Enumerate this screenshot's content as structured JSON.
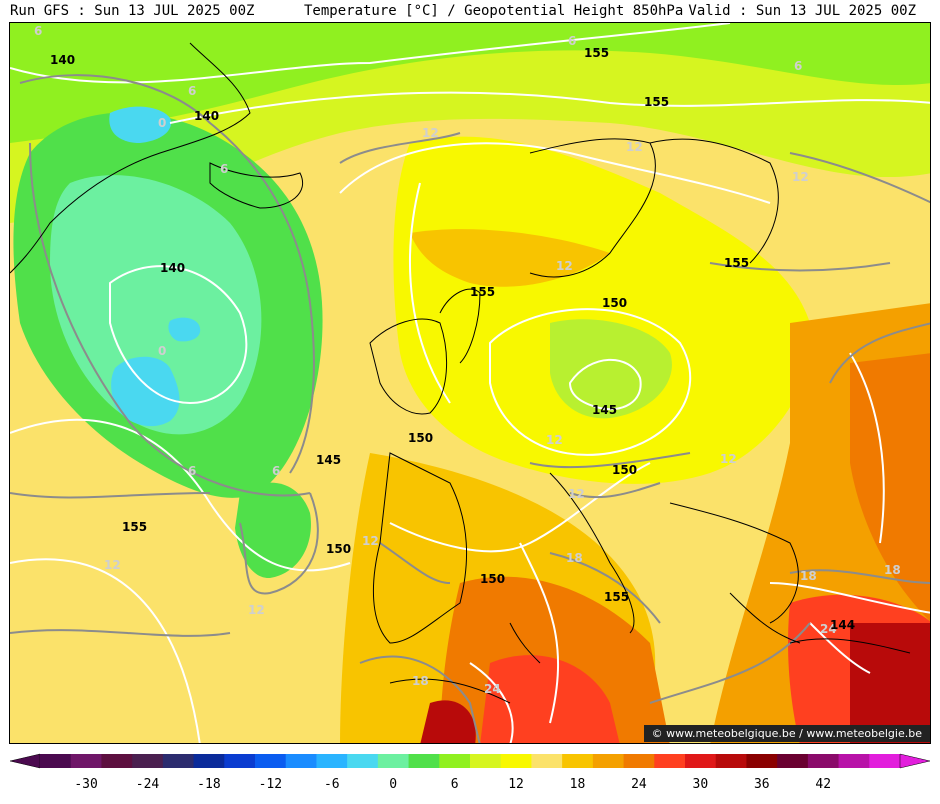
{
  "header": {
    "run": "Run GFS : Sun 13 JUL 2025 00Z",
    "title": "Temperature [°C] / Geopotential Height 850hPa",
    "valid": "Valid : Sun 13 JUL 2025 00Z"
  },
  "credit": "© www.meteobelgique.be / www.meteobelgie.be",
  "legend": {
    "ticks": [
      "-30",
      "-24",
      "-18",
      "-12",
      "-6",
      "0",
      "6",
      "12",
      "18",
      "24",
      "30",
      "36",
      "42"
    ],
    "colors": [
      "#4b0a4f",
      "#6f1668",
      "#5d0f3f",
      "#4a1f4f",
      "#2b2b6e",
      "#0a2a9a",
      "#0a3cd0",
      "#0a5cf0",
      "#1a8cff",
      "#2ab4ff",
      "#4ad8f0",
      "#6cf0a0",
      "#50e04a",
      "#90f020",
      "#d6f520",
      "#f8f800",
      "#fbe26a",
      "#f8c400",
      "#f4a000",
      "#f07a00",
      "#ff4020",
      "#e01818",
      "#b80a0a",
      "#8a0000",
      "#6a0030",
      "#8a0a6a",
      "#b812a8",
      "#e21edc"
    ]
  },
  "isotherm_labels": [
    "6",
    "6",
    "6",
    "6",
    "0",
    "0",
    "6",
    "6",
    "6",
    "12",
    "12",
    "12",
    "12",
    "12",
    "12",
    "12",
    "12",
    "12",
    "12",
    "18",
    "18",
    "18",
    "18",
    "24",
    "24"
  ],
  "height_labels": [
    "140",
    "140",
    "140",
    "145",
    "155",
    "155",
    "155",
    "140",
    "155",
    "150",
    "145",
    "150",
    "145",
    "150",
    "150",
    "155",
    "150",
    "155",
    "144"
  ]
}
